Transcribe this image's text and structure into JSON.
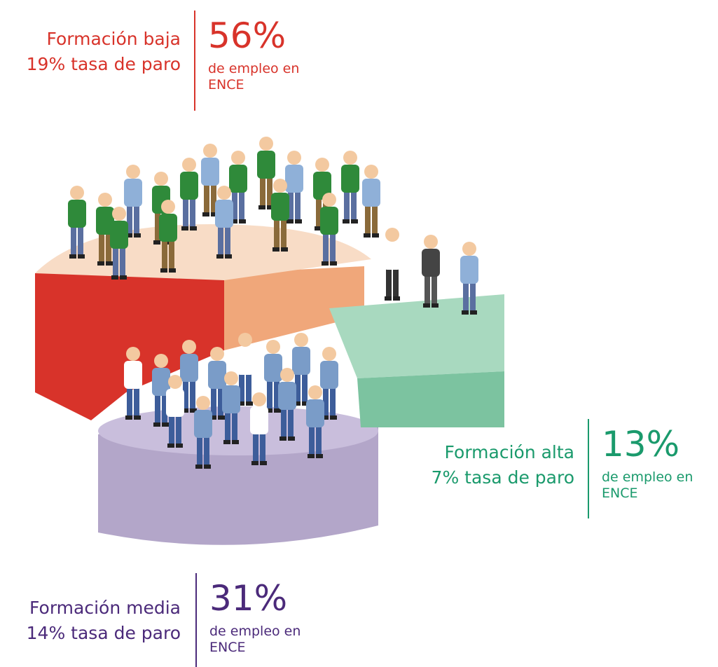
{
  "groups": [
    {
      "name": "Formación baja",
      "rate": "19% tasa de paro",
      "share": "56%",
      "caption": "de empleo en ENCE"
    },
    {
      "name": "Formación alta",
      "rate": "7% tasa de paro",
      "share": "13%",
      "caption": "de empleo en ENCE"
    },
    {
      "name": "Formación media",
      "rate": "14% tasa de paro",
      "share": "31%",
      "caption": "de empleo en ENCE"
    }
  ]
}
